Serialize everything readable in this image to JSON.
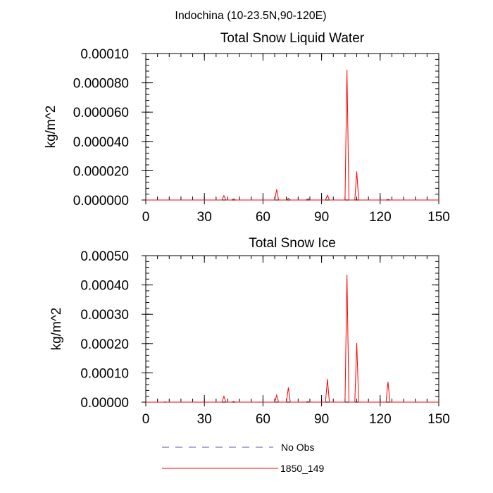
{
  "figure": {
    "suptitle": "Indochina (10-23.5N,90-120E)"
  },
  "chart_data": [
    {
      "type": "line",
      "title": "Total Snow Liquid Water",
      "xlabel": "",
      "ylabel": "kg/m^2",
      "xlim": [
        0,
        150
      ],
      "ylim": [
        0,
        0.0001
      ],
      "xticks": [
        0,
        30,
        60,
        90,
        120,
        150
      ],
      "xtick_labels": [
        "0",
        "30",
        "60",
        "90",
        "120",
        "150"
      ],
      "yticks": [
        0,
        2e-05,
        4e-05,
        6e-05,
        8e-05,
        0.0001
      ],
      "ytick_labels": [
        "0.000000",
        "0.000020",
        "0.000040",
        "0.000060",
        "0.000080",
        "0.00010"
      ],
      "series": [
        {
          "name": "1850_149",
          "color": "#ff0000",
          "x": [
            0,
            39,
            40,
            41,
            44,
            45,
            46,
            66,
            67,
            68,
            72,
            73,
            74,
            82,
            83,
            84,
            92,
            93,
            94,
            102,
            103,
            104,
            107,
            108,
            109,
            123,
            124,
            125,
            150
          ],
          "y": [
            0,
            0,
            3e-06,
            0,
            0,
            8e-07,
            0,
            0,
            7.2e-06,
            0,
            0,
            1.2e-06,
            0,
            0,
            8e-07,
            0,
            0,
            3.3e-06,
            0,
            0,
            8.9e-05,
            0,
            0,
            1.95e-05,
            0,
            0,
            4e-07,
            0,
            0
          ]
        }
      ]
    },
    {
      "type": "line",
      "title": "Total Snow Ice",
      "xlabel": "",
      "ylabel": "kg/m^2",
      "xlim": [
        0,
        150
      ],
      "ylim": [
        0,
        0.0005
      ],
      "xticks": [
        0,
        30,
        60,
        90,
        120,
        150
      ],
      "xtick_labels": [
        "0",
        "30",
        "60",
        "90",
        "120",
        "150"
      ],
      "yticks": [
        0,
        0.0001,
        0.0002,
        0.0003,
        0.0004,
        0.0005
      ],
      "ytick_labels": [
        "0.00000",
        "0.00010",
        "0.00020",
        "0.00030",
        "0.00040",
        "0.00050"
      ],
      "series": [
        {
          "name": "1850_149",
          "color": "#ff0000",
          "x": [
            0,
            9,
            10,
            11,
            39,
            40,
            41,
            44,
            45,
            46,
            66,
            67,
            68,
            72,
            73,
            74,
            82,
            83,
            84,
            92,
            93,
            94,
            102,
            103,
            104,
            107,
            108,
            109,
            123,
            124,
            125,
            150
          ],
          "y": [
            0,
            0,
            1e-06,
            0,
            0,
            2e-05,
            0,
            0,
            2e-06,
            0,
            0,
            2.4e-05,
            0,
            0,
            5e-05,
            0,
            0,
            2e-06,
            0,
            0,
            7.9e-05,
            0,
            0,
            0.000435,
            0,
            0,
            0.000202,
            0,
            0,
            7e-05,
            0,
            0
          ]
        }
      ]
    }
  ],
  "legend": [
    {
      "label": "No Obs",
      "color": "#5555aa",
      "style": "dashed"
    },
    {
      "label": "1850_149",
      "color": "#ff0000",
      "style": "solid"
    }
  ]
}
